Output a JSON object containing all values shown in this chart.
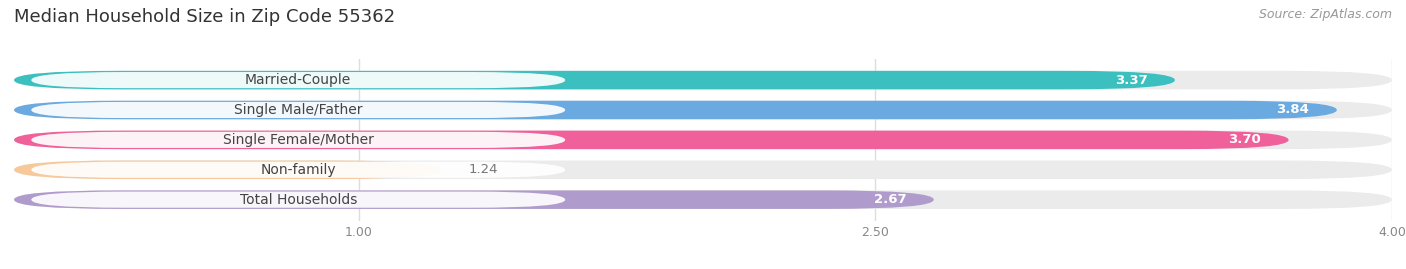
{
  "title": "Median Household Size in Zip Code 55362",
  "source": "Source: ZipAtlas.com",
  "categories": [
    "Married-Couple",
    "Single Male/Father",
    "Single Female/Mother",
    "Non-family",
    "Total Households"
  ],
  "values": [
    3.37,
    3.84,
    3.7,
    1.24,
    2.67
  ],
  "bar_colors": [
    "#3bbfbf",
    "#6aaae0",
    "#f0609a",
    "#f7c89a",
    "#b09ccc"
  ],
  "xmin": 0.0,
  "xmax": 4.0,
  "xticks": [
    1.0,
    2.5,
    4.0
  ],
  "xtick_labels": [
    "1.00",
    "2.50",
    "4.00"
  ],
  "title_fontsize": 13,
  "source_fontsize": 9,
  "label_fontsize": 10,
  "value_fontsize": 9.5,
  "bar_height": 0.62,
  "background_color": "#ffffff",
  "bar_bg_color": "#ebebeb",
  "label_bg_color": "#ffffff",
  "grid_color": "#dddddd"
}
